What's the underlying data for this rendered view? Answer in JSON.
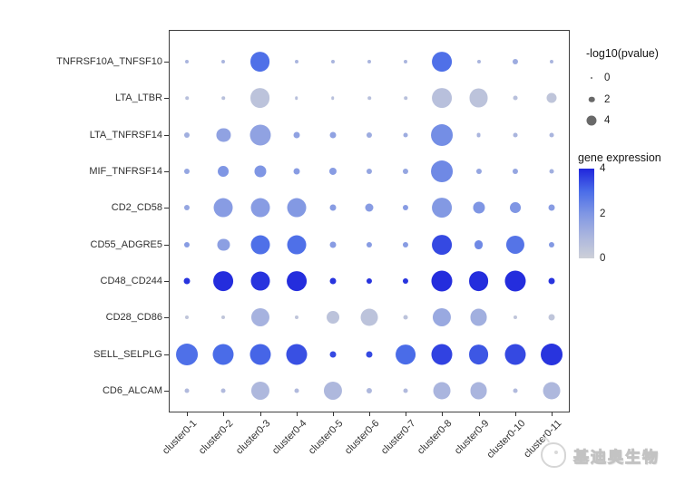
{
  "watermark": {
    "text": "基迪奥生物"
  },
  "chart_data": {
    "type": "scatter",
    "subtype": "dot-plot (interaction bubble plot)",
    "title": "",
    "xlabel": "",
    "ylabel": "",
    "grid": false,
    "x_categories": [
      "cluster0-1",
      "cluster0-2",
      "cluster0-3",
      "cluster0-4",
      "cluster0-5",
      "cluster0-6",
      "cluster0-7",
      "cluster0-8",
      "cluster0-9",
      "cluster0-10",
      "cluster0-11"
    ],
    "y_categories": [
      "TNFRSF10A_TNFSF10",
      "LTA_LTBR",
      "LTA_TNFRSF14",
      "MIF_TNFRSF14",
      "CD2_CD58",
      "CD55_ADGRE5",
      "CD48_CD244",
      "CD28_CD86",
      "SELL_SELPLG",
      "CD6_ALCAM"
    ],
    "rows": [
      {
        "pair": "TNFRSF10A_TNFSF10",
        "neglog10_pvalue": [
          0.9,
          0.9,
          8.8,
          0.9,
          0.9,
          0.9,
          0.9,
          8.8,
          0.9,
          1.8,
          0.9
        ],
        "expression": [
          1.0,
          1.0,
          2.9,
          1.0,
          1.0,
          1.0,
          1.0,
          2.9,
          1.0,
          1.3,
          1.0
        ]
      },
      {
        "pair": "LTA_LTBR",
        "neglog10_pvalue": [
          0.7,
          0.7,
          8.8,
          0.7,
          0.7,
          0.7,
          0.7,
          8.8,
          8.4,
          1.3,
          4.0
        ],
        "expression": [
          0.6,
          0.6,
          0.5,
          0.6,
          0.6,
          0.6,
          0.6,
          0.6,
          0.5,
          0.6,
          0.4
        ]
      },
      {
        "pair": "LTA_TNFRSF14",
        "neglog10_pvalue": [
          1.8,
          5.8,
          9.3,
          2.2,
          2.2,
          1.8,
          1.3,
          9.7,
          1.3,
          1.3,
          1.3
        ],
        "expression": [
          1.2,
          1.6,
          1.6,
          1.6,
          1.6,
          1.3,
          1.3,
          2.2,
          1.0,
          1.0,
          1.0
        ]
      },
      {
        "pair": "MIF_TNFRSF14",
        "neglog10_pvalue": [
          1.8,
          4.4,
          4.9,
          2.2,
          2.7,
          1.8,
          1.8,
          9.7,
          1.8,
          1.8,
          1.3
        ],
        "expression": [
          1.5,
          2.0,
          2.0,
          1.8,
          1.8,
          1.5,
          1.5,
          2.3,
          1.5,
          1.5,
          1.2
        ]
      },
      {
        "pair": "CD2_CD58",
        "neglog10_pvalue": [
          1.8,
          8.4,
          8.4,
          8.4,
          2.2,
          3.1,
          1.8,
          8.8,
          4.9,
          4.4,
          2.2
        ],
        "expression": [
          1.5,
          1.8,
          1.8,
          1.9,
          1.8,
          1.8,
          1.8,
          1.9,
          2.0,
          2.0,
          1.8
        ]
      },
      {
        "pair": "CD55_ADGRE5",
        "neglog10_pvalue": [
          1.8,
          4.9,
          8.4,
          8.4,
          2.2,
          1.8,
          1.8,
          8.8,
          3.5,
          8.0,
          1.8
        ],
        "expression": [
          1.8,
          1.7,
          2.9,
          2.9,
          1.8,
          1.8,
          1.8,
          3.5,
          2.3,
          2.8,
          1.9
        ]
      },
      {
        "pair": "CD48_CD244",
        "neglog10_pvalue": [
          2.2,
          8.8,
          8.4,
          8.8,
          2.2,
          1.8,
          1.8,
          9.3,
          8.8,
          9.3,
          2.2
        ],
        "expression": [
          3.8,
          3.9,
          3.8,
          3.9,
          3.8,
          3.8,
          3.8,
          3.9,
          3.9,
          3.9,
          3.8
        ]
      },
      {
        "pair": "CD28_CD86",
        "neglog10_pvalue": [
          0.9,
          0.9,
          8.0,
          0.9,
          5.3,
          7.5,
          1.3,
          8.0,
          7.5,
          0.9,
          2.2
        ],
        "expression": [
          0.4,
          0.4,
          1.1,
          0.4,
          0.5,
          0.5,
          0.5,
          1.4,
          1.2,
          0.4,
          0.4
        ]
      },
      {
        "pair": "SELL_SELPLG",
        "neglog10_pvalue": [
          9.7,
          9.3,
          9.3,
          9.3,
          2.2,
          2.2,
          8.8,
          9.3,
          8.8,
          9.3,
          9.7
        ],
        "expression": [
          2.9,
          3.0,
          3.1,
          3.4,
          3.5,
          3.5,
          3.0,
          3.6,
          3.3,
          3.5,
          3.8
        ]
      },
      {
        "pair": "CD6_ALCAM",
        "neglog10_pvalue": [
          1.3,
          1.3,
          8.0,
          1.3,
          8.0,
          1.8,
          1.3,
          7.5,
          7.5,
          1.3,
          7.5
        ],
        "expression": [
          0.8,
          0.8,
          0.9,
          0.8,
          0.9,
          0.9,
          0.8,
          1.0,
          1.0,
          0.8,
          0.9
        ]
      }
    ],
    "size_legend": {
      "title": "-log10(pvalue)",
      "values": [
        0,
        2,
        4
      ],
      "dot_color": "#696969"
    },
    "color_legend": {
      "title": "gene expression",
      "ticks": [
        4,
        2,
        0
      ],
      "min": 0,
      "max": 4,
      "stops": [
        "#cdd0d8",
        "#aab5de",
        "#7f96e4",
        "#4a6ce8",
        "#2026dc"
      ]
    }
  }
}
